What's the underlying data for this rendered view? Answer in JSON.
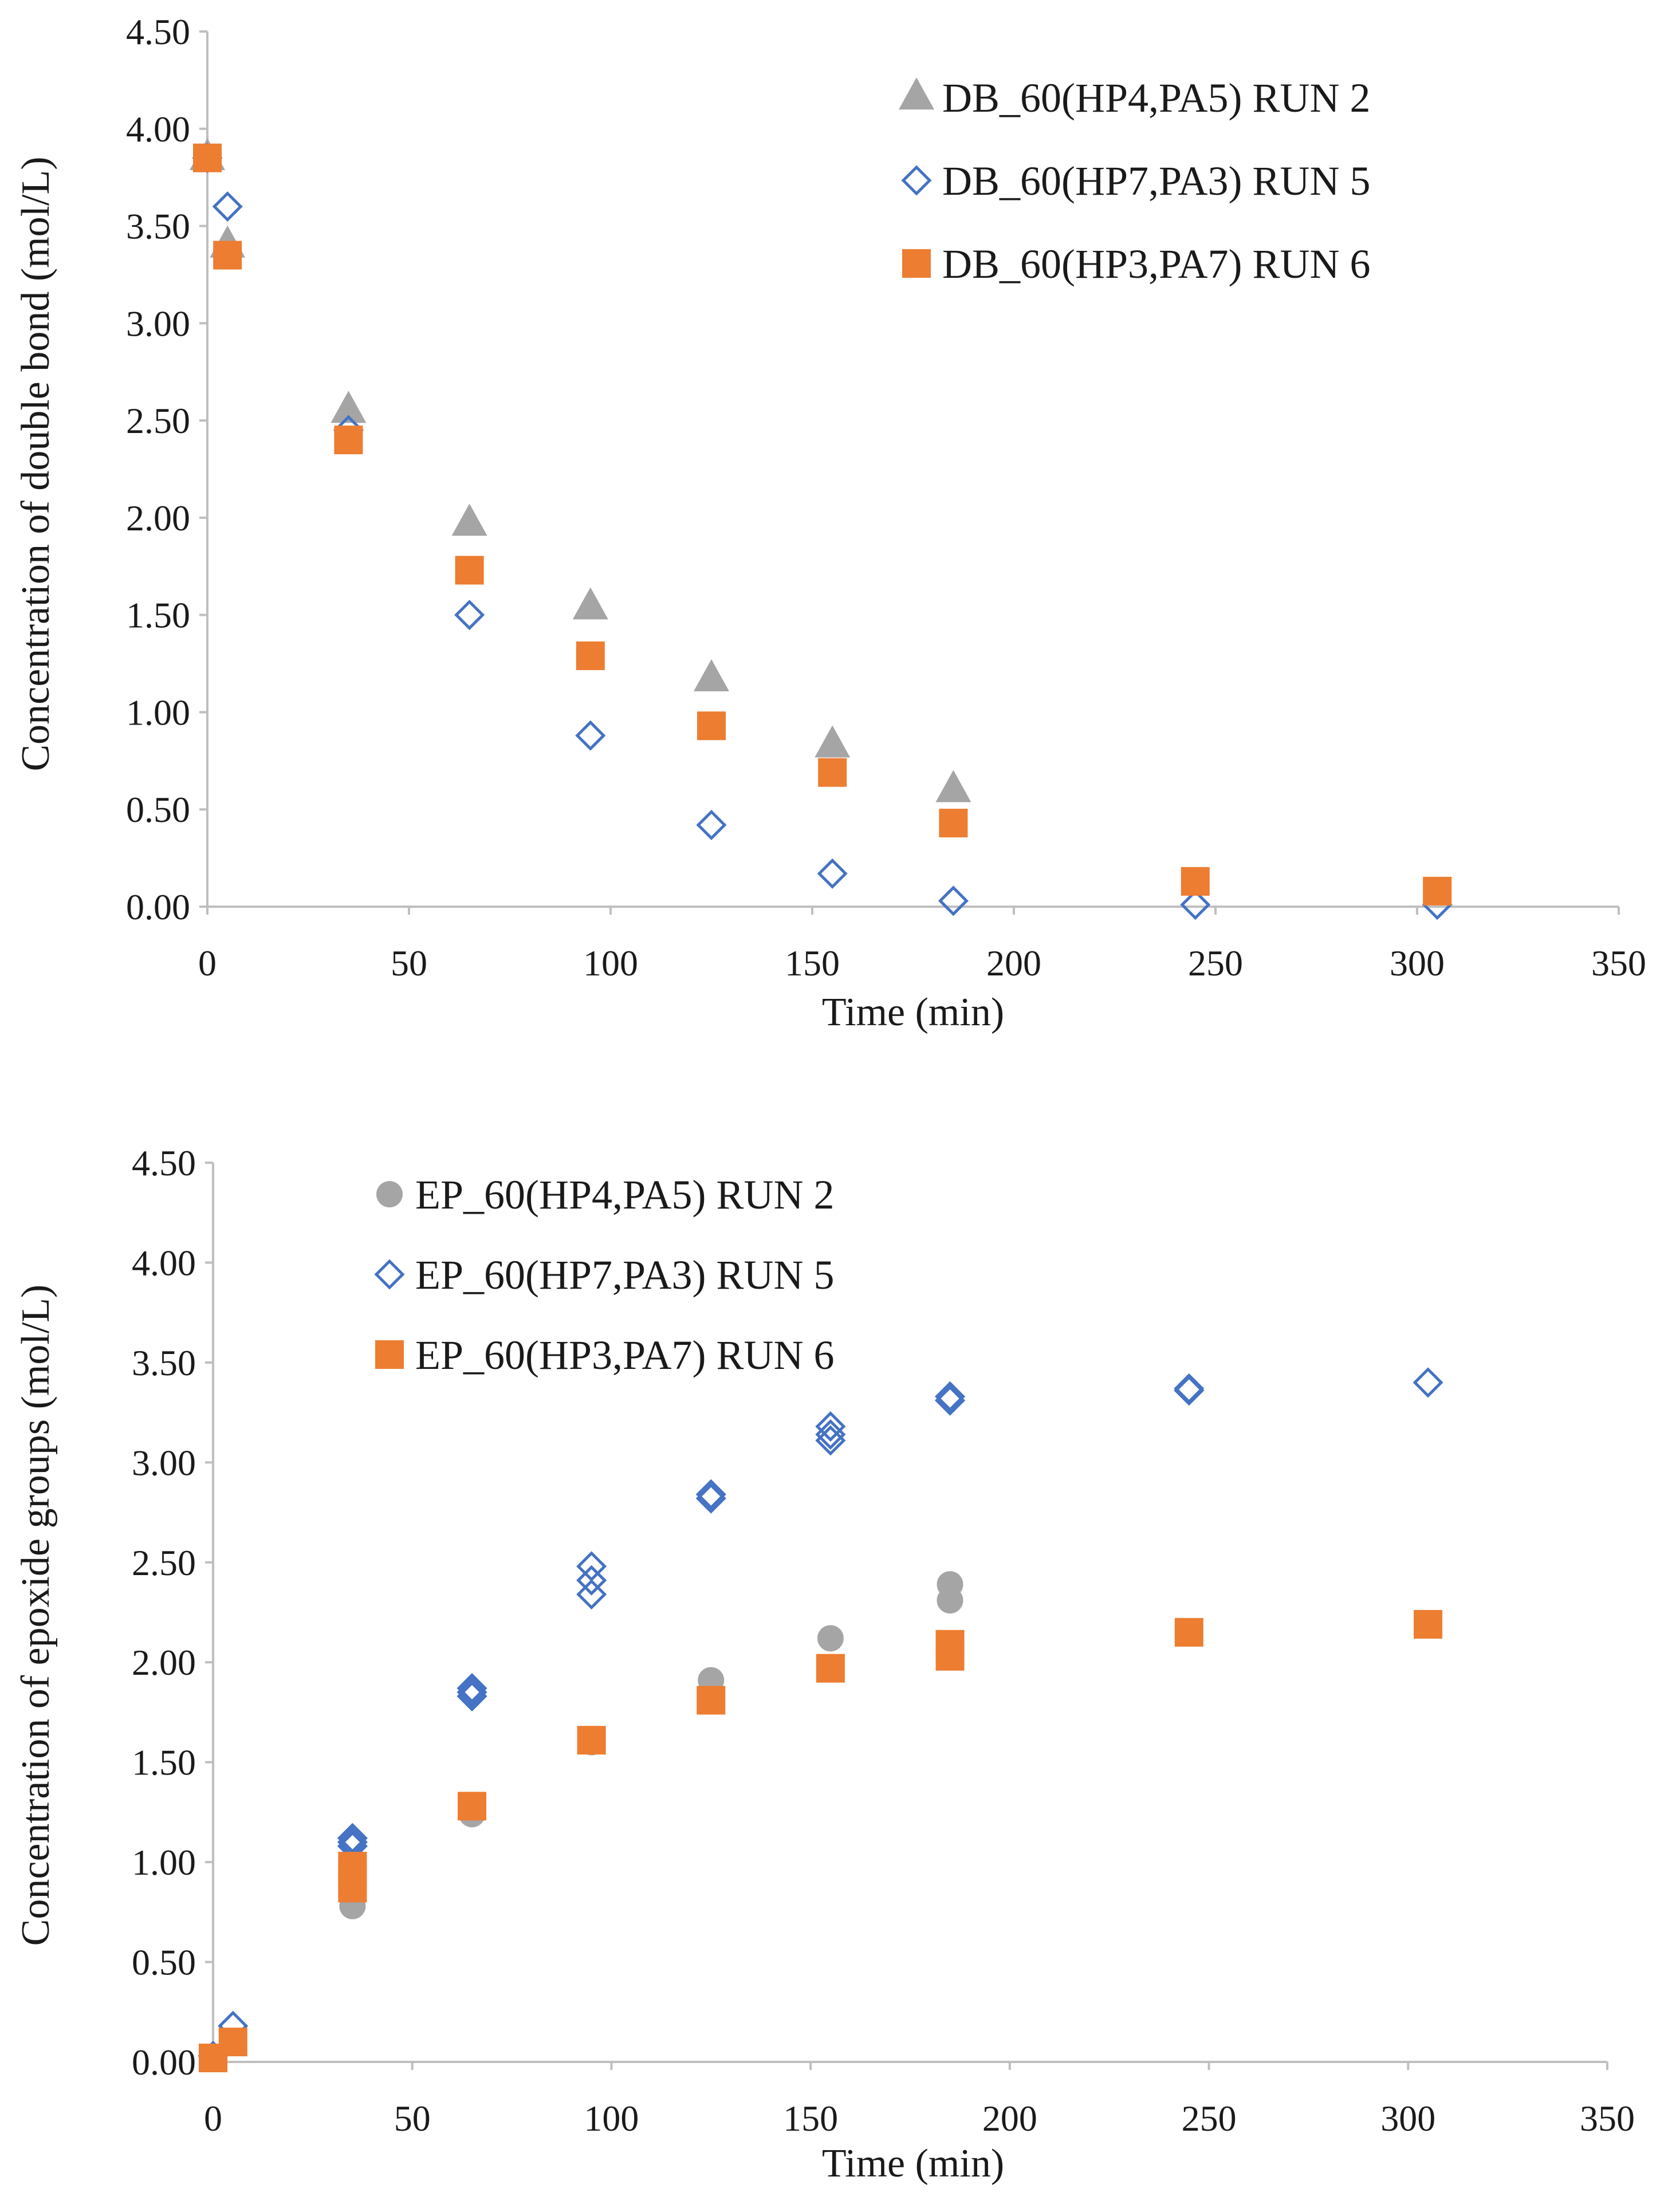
{
  "colors": {
    "gray": "#A5A5A5",
    "blue": "#4472C4",
    "orange": "#ED7D31",
    "axis": "#BFBFBF"
  },
  "chart_data": [
    {
      "type": "scatter",
      "title": "",
      "xlabel": "Time (min)",
      "ylabel": "Concentration of double bond (mol/L)",
      "xlim": [
        0,
        350
      ],
      "ylim": [
        0,
        4.5
      ],
      "xticks": [
        0,
        50,
        100,
        150,
        200,
        250,
        300,
        350
      ],
      "yticks": [
        0,
        0.5,
        1.0,
        1.5,
        2.0,
        2.5,
        3.0,
        3.5,
        4.0,
        4.5
      ],
      "xtick_labels": [
        "0",
        "50",
        "100",
        "150",
        "200",
        "250",
        "300",
        "350"
      ],
      "ytick_labels": [
        "0.00",
        "0.50",
        "1.00",
        "1.50",
        "2.00",
        "2.50",
        "3.00",
        "3.50",
        "4.00",
        "4.50"
      ],
      "grid": false,
      "legend_position": "top-right",
      "series": [
        {
          "name": "DB_60(HP4,PA5) RUN 2",
          "marker": "triangle",
          "color": "#A5A5A5",
          "x": [
            0,
            5,
            35,
            65,
            95,
            125,
            155,
            185
          ],
          "y": [
            3.85,
            3.4,
            2.55,
            1.97,
            1.54,
            1.17,
            0.83,
            0.6
          ]
        },
        {
          "name": "DB_60(HP7,PA3) RUN 5",
          "marker": "diamond-open",
          "color": "#4472C4",
          "x": [
            0,
            5,
            35,
            65,
            95,
            125,
            155,
            185,
            245,
            305
          ],
          "y": [
            3.85,
            3.6,
            2.45,
            1.5,
            0.88,
            0.42,
            0.17,
            0.03,
            0.01,
            0.01
          ]
        },
        {
          "name": "DB_60(HP3,PA7) RUN 6",
          "marker": "square",
          "color": "#ED7D31",
          "x": [
            0,
            5,
            35,
            65,
            95,
            125,
            155,
            185,
            245,
            305
          ],
          "y": [
            3.85,
            3.35,
            2.4,
            1.73,
            1.29,
            0.93,
            0.69,
            0.43,
            0.13,
            0.08
          ]
        }
      ]
    },
    {
      "type": "scatter",
      "title": "",
      "xlabel": "Time (min)",
      "ylabel": "Concentration of epoxide groups (mol/L)",
      "xlim": [
        0,
        350
      ],
      "ylim": [
        0,
        4.5
      ],
      "xticks": [
        0,
        50,
        100,
        150,
        200,
        250,
        300,
        350
      ],
      "yticks": [
        0,
        0.5,
        1.0,
        1.5,
        2.0,
        2.5,
        3.0,
        3.5,
        4.0,
        4.5
      ],
      "xtick_labels": [
        "0",
        "50",
        "100",
        "150",
        "200",
        "250",
        "300",
        "350"
      ],
      "ytick_labels": [
        "0.00",
        "0.50",
        "1.00",
        "1.50",
        "2.00",
        "2.50",
        "3.00",
        "3.50",
        "4.00",
        "4.50"
      ],
      "grid": false,
      "legend_position": "top-left",
      "series": [
        {
          "name": "EP_60(HP4,PA5) RUN 2",
          "marker": "circle",
          "color": "#A5A5A5",
          "x": [
            0,
            5,
            35,
            35,
            65,
            95,
            125,
            155,
            185,
            185
          ],
          "y": [
            0.02,
            0.1,
            0.78,
            0.85,
            1.24,
            1.6,
            1.91,
            2.12,
            2.31,
            2.39
          ]
        },
        {
          "name": "EP_60(HP7,PA3) RUN 5",
          "marker": "diamond-open",
          "color": "#4472C4",
          "x": [
            0,
            5,
            35,
            35,
            35,
            65,
            65,
            65,
            95,
            95,
            95,
            125,
            125,
            155,
            155,
            155,
            185,
            185,
            245,
            245,
            305
          ],
          "y": [
            0.03,
            0.18,
            1.08,
            1.1,
            1.12,
            1.83,
            1.85,
            1.87,
            2.34,
            2.41,
            2.48,
            2.82,
            2.84,
            3.11,
            3.14,
            3.18,
            3.31,
            3.33,
            3.36,
            3.37,
            3.4
          ]
        },
        {
          "name": "EP_60(HP3,PA7) RUN 6",
          "marker": "square",
          "color": "#ED7D31",
          "x": [
            0,
            5,
            35,
            35,
            35,
            65,
            95,
            125,
            155,
            185,
            185,
            245,
            305
          ],
          "y": [
            0.02,
            0.1,
            0.87,
            0.93,
            0.98,
            1.28,
            1.61,
            1.81,
            1.97,
            2.03,
            2.09,
            2.15,
            2.19
          ]
        }
      ]
    }
  ]
}
